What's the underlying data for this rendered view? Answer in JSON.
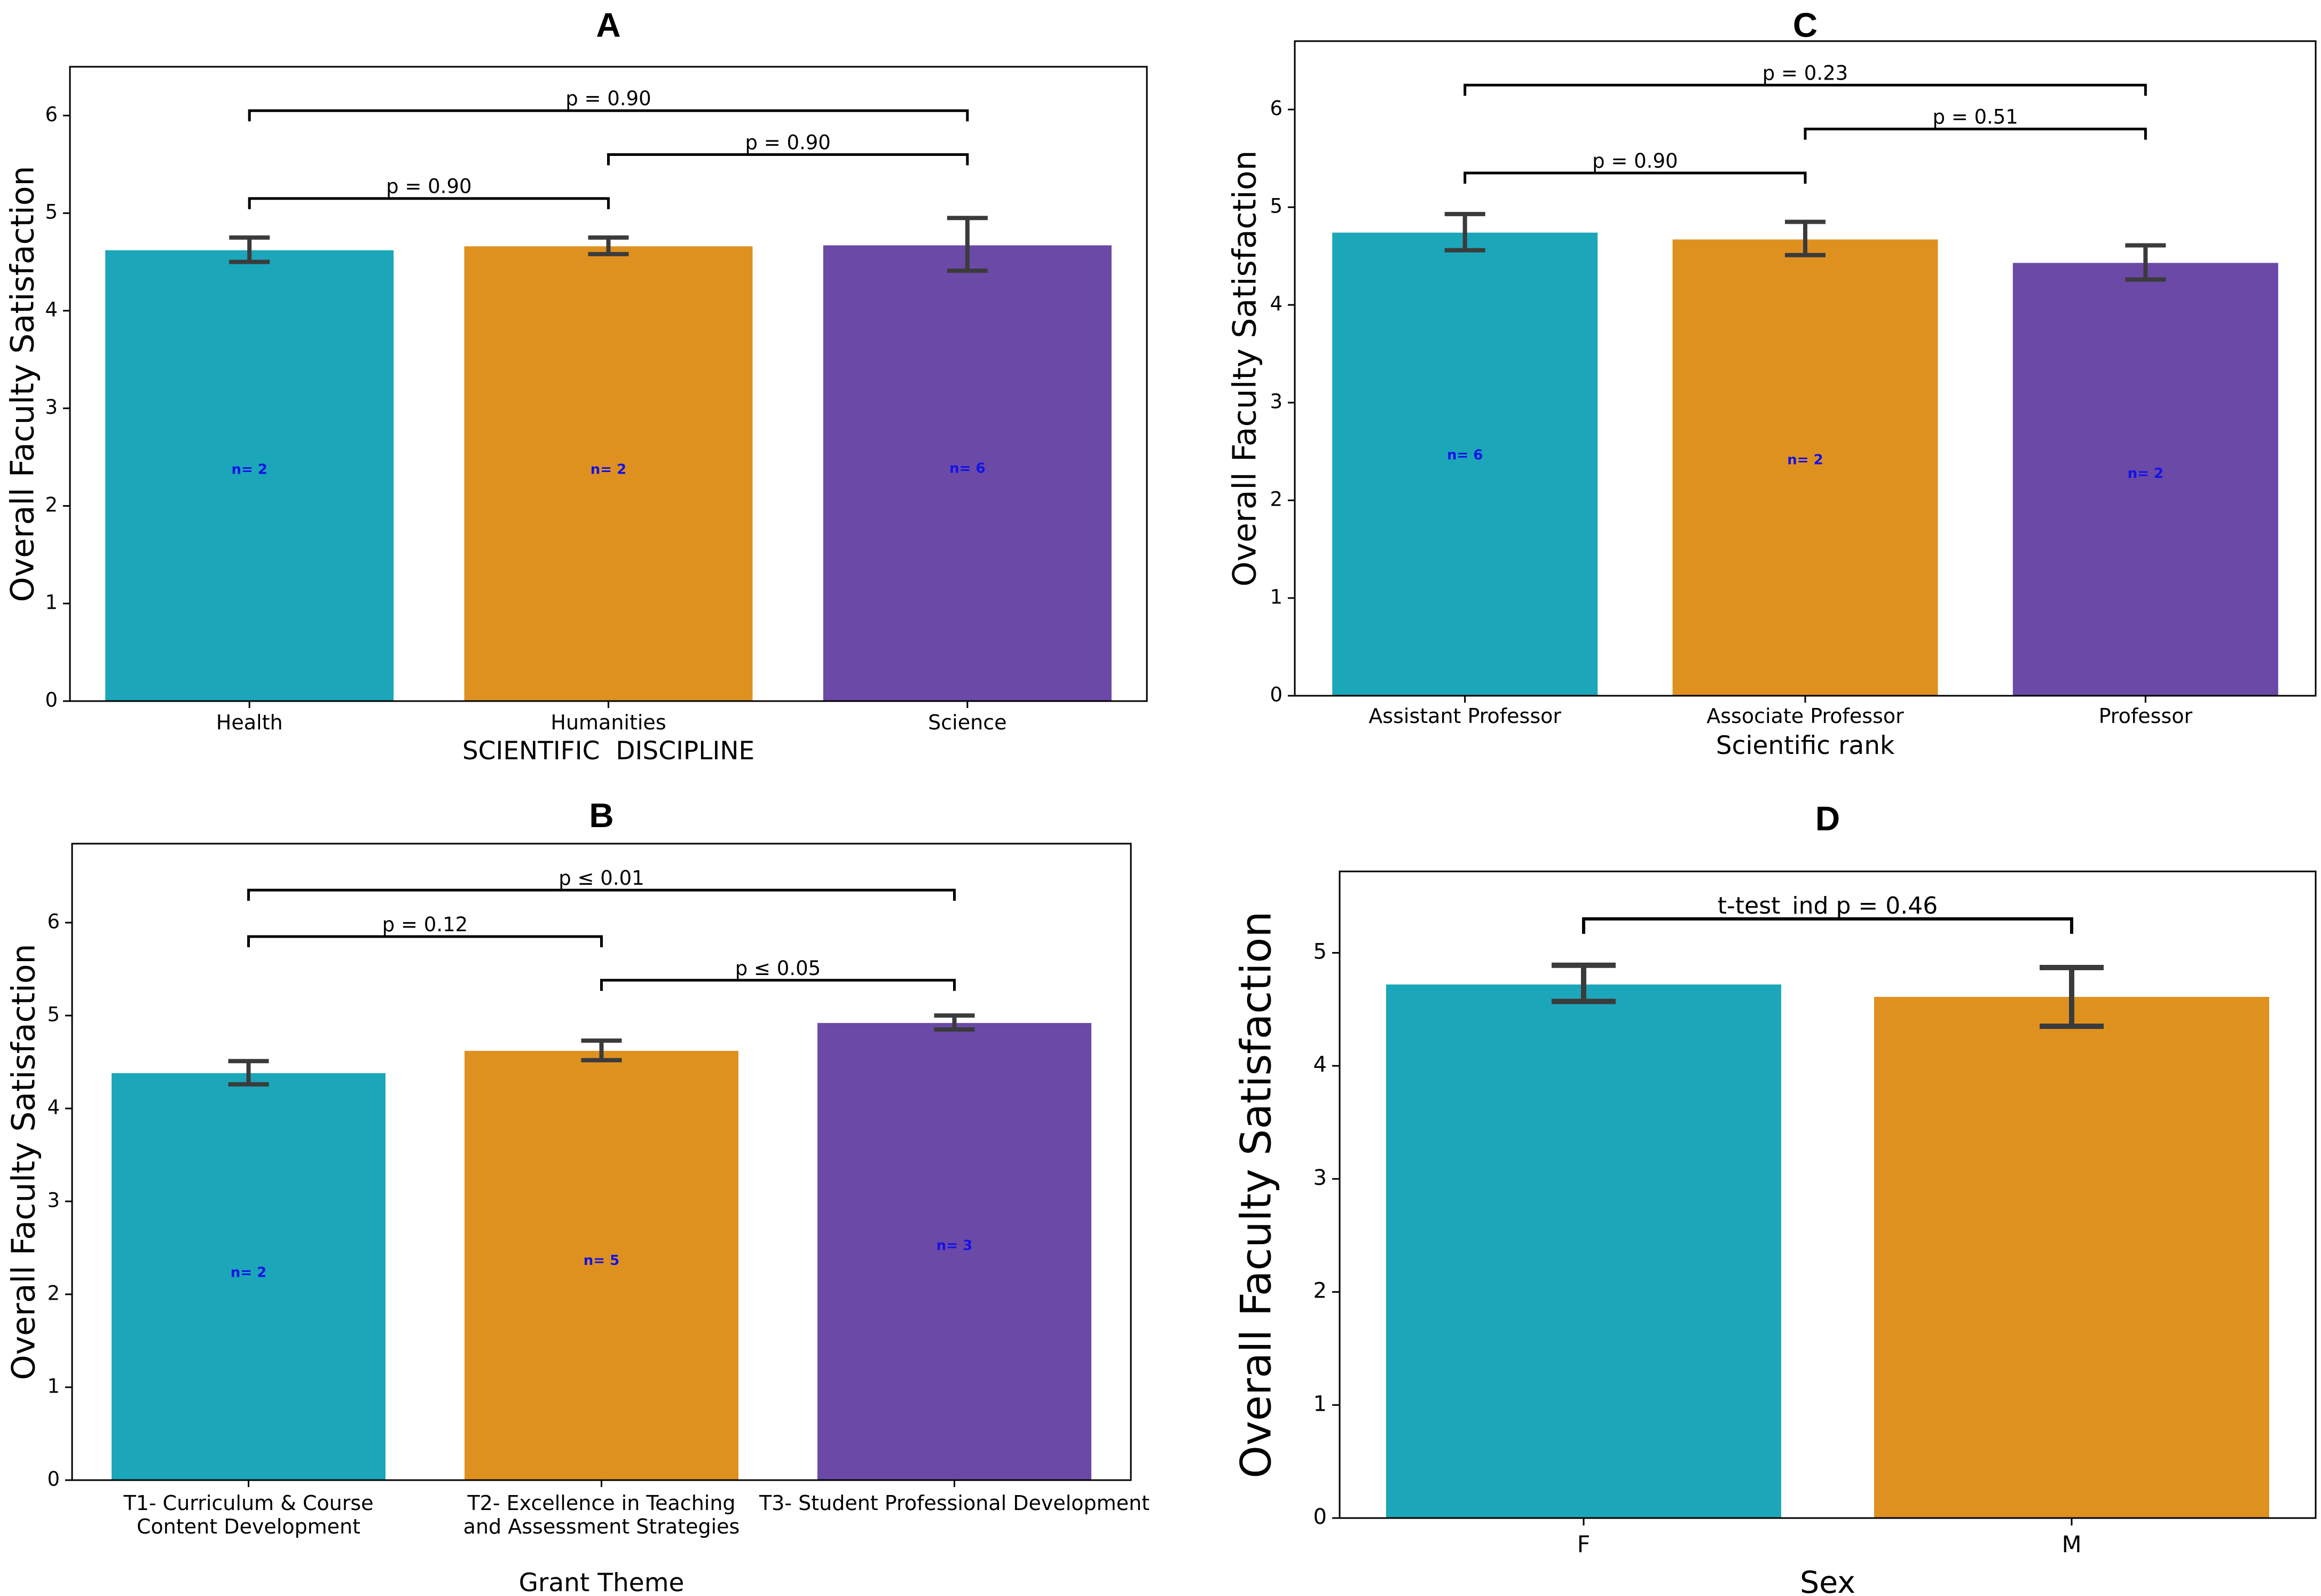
{
  "colors": {
    "teal": "#1ca6b9",
    "orange": "#df9120",
    "purple": "#6b49a6",
    "err": "#3b3b3b",
    "nlabel": "#1212e8"
  },
  "chart_data": [
    {
      "panel": "A",
      "type": "bar",
      "title": "A",
      "xlabel": "SCIENTIFIC  DISCIPLINE",
      "ylabel": "Overall Faculty Satisfaction",
      "categories": [
        "Health",
        "Humanities",
        "Science"
      ],
      "values": [
        4.62,
        4.66,
        4.67
      ],
      "err_low": [
        4.5,
        4.58,
        4.41
      ],
      "err_high": [
        4.75,
        4.75,
        4.95
      ],
      "n_labels": [
        "n= 2",
        "n= 2",
        "n= 6"
      ],
      "n_label_y": [
        2.37,
        2.37,
        2.38
      ],
      "ylim": [
        0,
        6.5
      ],
      "yticks": [
        "0",
        "1",
        "2",
        "3",
        "4",
        "5",
        "6"
      ],
      "comparisons": [
        {
          "from": 0,
          "to": 1,
          "y": 5.15,
          "label": "p = 0.90"
        },
        {
          "from": 1,
          "to": 2,
          "y": 5.6,
          "label": "p = 0.90"
        },
        {
          "from": 0,
          "to": 2,
          "y": 6.05,
          "label": "p = 0.90"
        }
      ]
    },
    {
      "panel": "C",
      "type": "bar",
      "title": "C",
      "xlabel": "Scientific rank",
      "ylabel": "Overall Faculty Satisfaction",
      "categories": [
        "Assistant Professor",
        "Associate Professor",
        "Professor"
      ],
      "values": [
        4.74,
        4.67,
        4.43
      ],
      "err_low": [
        4.56,
        4.51,
        4.26
      ],
      "err_high": [
        4.93,
        4.85,
        4.61
      ],
      "n_labels": [
        "n= 6",
        "n= 2",
        "n= 2"
      ],
      "n_label_y": [
        2.46,
        2.41,
        2.27
      ],
      "ylim": [
        0,
        6.7
      ],
      "yticks": [
        "0",
        "1",
        "2",
        "3",
        "4",
        "5",
        "6"
      ],
      "comparisons": [
        {
          "from": 0,
          "to": 1,
          "y": 5.35,
          "label": "p = 0.90"
        },
        {
          "from": 1,
          "to": 2,
          "y": 5.8,
          "label": "p = 0.51"
        },
        {
          "from": 0,
          "to": 2,
          "y": 6.25,
          "label": "p = 0.23"
        }
      ]
    },
    {
      "panel": "B",
      "type": "bar",
      "title": "B",
      "xlabel": "Grant Theme",
      "ylabel": "Overall Faculty Satisfaction",
      "categories": [
        [
          "T1- Curriculum & Course",
          "Content Development"
        ],
        [
          "T2- Excellence in Teaching",
          "and Assessment Strategies"
        ],
        [
          "T3- Student Professional Development"
        ]
      ],
      "values": [
        4.38,
        4.62,
        4.92
      ],
      "err_low": [
        4.26,
        4.52,
        4.85
      ],
      "err_high": [
        4.51,
        4.73,
        5.0
      ],
      "n_labels": [
        "n= 2",
        "n= 5",
        "n= 3"
      ],
      "n_label_y": [
        2.23,
        2.36,
        2.52
      ],
      "ylim": [
        0,
        6.85
      ],
      "yticks": [
        "0",
        "1",
        "2",
        "3",
        "4",
        "5",
        "6"
      ],
      "comparisons": [
        {
          "from": 0,
          "to": 1,
          "y": 5.85,
          "label": "p = 0.12"
        },
        {
          "from": 1,
          "to": 2,
          "y": 5.38,
          "label": "p ≤ 0.05"
        },
        {
          "from": 0,
          "to": 2,
          "y": 6.35,
          "label": "p ≤ 0.01"
        }
      ]
    },
    {
      "panel": "D",
      "type": "bar",
      "title": "D",
      "xlabel": "Sex",
      "ylabel": "Overall Faculty Satisfaction",
      "categories": [
        "F",
        "M"
      ],
      "values": [
        4.72,
        4.61
      ],
      "err_low": [
        4.57,
        4.35
      ],
      "err_high": [
        4.89,
        4.87
      ],
      "n_labels": [],
      "n_label_y": [],
      "ylim": [
        0,
        5.72
      ],
      "yticks": [
        "0",
        "1",
        "2",
        "3",
        "4",
        "5"
      ],
      "comparisons": [
        {
          "from": 0,
          "to": 1,
          "y": 5.3,
          "label": "t-test_ind p = 0.46"
        }
      ]
    }
  ]
}
